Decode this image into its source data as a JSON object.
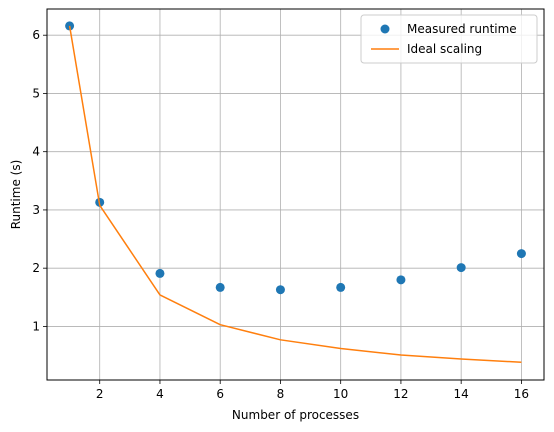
{
  "chart_data": {
    "type": "scatter",
    "xlabel": "Number of processes",
    "ylabel": "Runtime (s)",
    "xlim": [
      0.25,
      16.75
    ],
    "ylim": [
      0.08,
      6.45
    ],
    "xticks": [
      2,
      4,
      6,
      8,
      10,
      12,
      14,
      16
    ],
    "yticks": [
      1,
      2,
      3,
      4,
      5,
      6
    ],
    "grid": true,
    "legend_position": "top-right",
    "series": [
      {
        "name": "Measured runtime",
        "kind": "scatter",
        "color": "#1f77b4",
        "x": [
          1,
          2,
          4,
          6,
          8,
          10,
          12,
          14,
          16
        ],
        "y": [
          6.16,
          3.13,
          1.91,
          1.67,
          1.63,
          1.67,
          1.8,
          2.01,
          2.25
        ]
      },
      {
        "name": "Ideal scaling",
        "kind": "line",
        "color": "#ff7f0e",
        "x": [
          1,
          2,
          4,
          6,
          8,
          10,
          12,
          14,
          16
        ],
        "y": [
          6.16,
          3.08,
          1.54,
          1.03,
          0.77,
          0.62,
          0.51,
          0.44,
          0.385
        ]
      }
    ]
  }
}
